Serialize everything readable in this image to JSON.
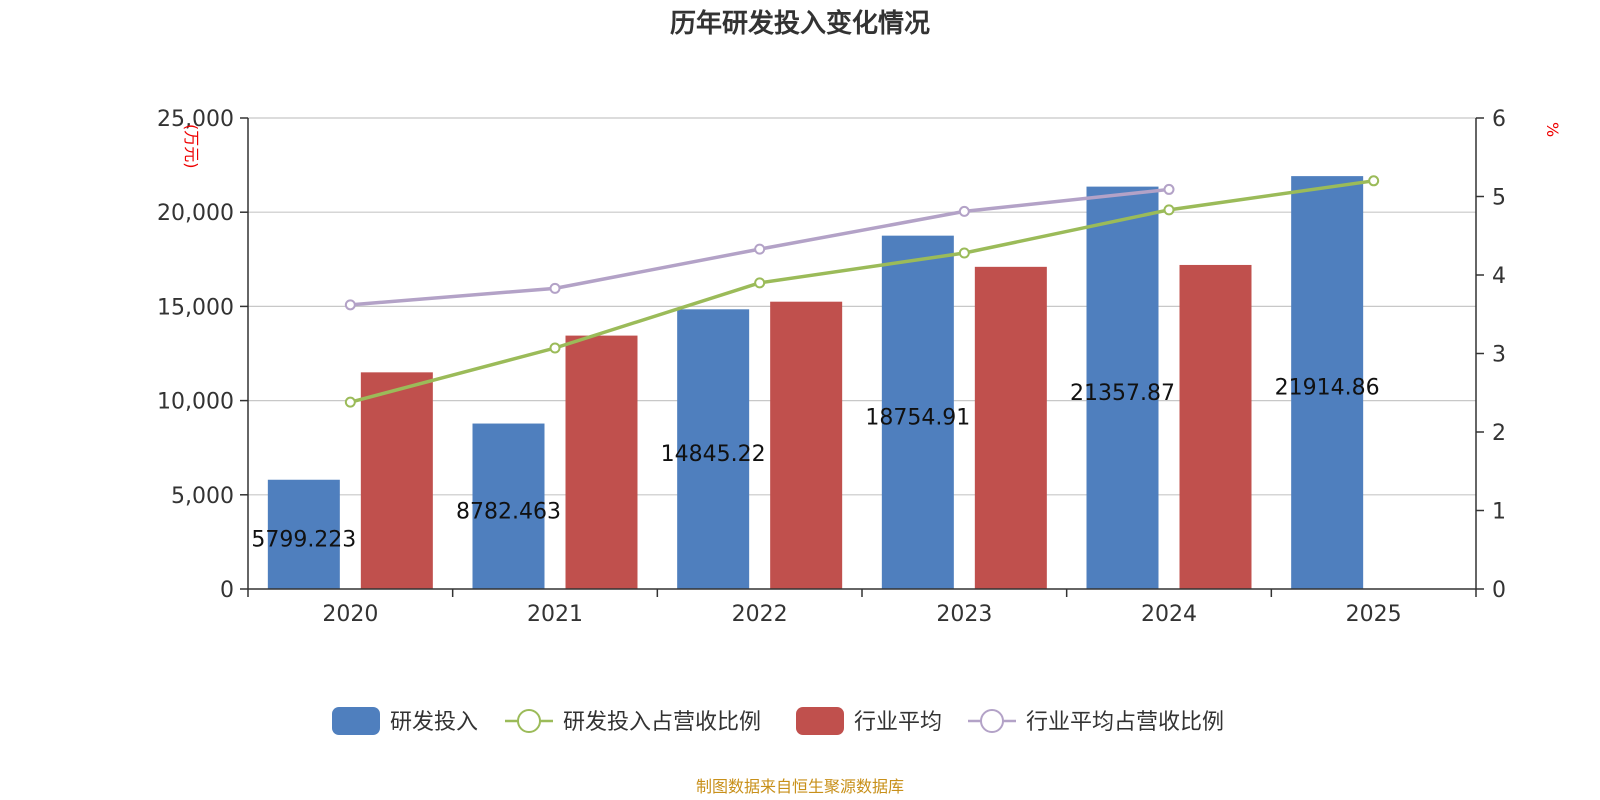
{
  "chart_data": {
    "type": "bar",
    "title": "历年研发投入变化情况",
    "categories": [
      "2020",
      "2021",
      "2022",
      "2023",
      "2024",
      "2025"
    ],
    "series": [
      {
        "name": "研发投入",
        "kind": "bar",
        "axis": "left",
        "color": "#4f7fbe",
        "values": [
          5799.223,
          8782.463,
          14845.22,
          18754.91,
          21357.87,
          21914.86
        ],
        "labels": [
          "5799.223",
          "8782.463",
          "14845.22",
          "18754.91",
          "21357.87",
          "21914.86"
        ]
      },
      {
        "name": "研发投入占营收比例",
        "kind": "line",
        "axis": "right",
        "color": "#9bbb59",
        "values": [
          2.38,
          3.07,
          3.9,
          4.28,
          4.83,
          5.2
        ]
      },
      {
        "name": "行业平均",
        "kind": "bar",
        "axis": "left",
        "color": "#c0504d",
        "values": [
          11500,
          13450,
          15250,
          17100,
          17200,
          null
        ]
      },
      {
        "name": "行业平均占营收比例",
        "kind": "line",
        "axis": "right",
        "color": "#b3a2c7",
        "values": [
          3.62,
          3.83,
          4.33,
          4.81,
          5.09,
          null
        ]
      }
    ],
    "y_left": {
      "label": "万元",
      "min": 0,
      "max": 25000,
      "ticks": [
        "0",
        "5,000",
        "10,000",
        "15,000",
        "20,000",
        "25,000"
      ]
    },
    "y_right": {
      "label": "%",
      "min": 0,
      "max": 6,
      "ticks": [
        "0",
        "1",
        "2",
        "3",
        "4",
        "5",
        "6"
      ]
    },
    "grid": true,
    "legend": "bottom-center",
    "source": "制图数据来自恒生聚源数据库"
  }
}
